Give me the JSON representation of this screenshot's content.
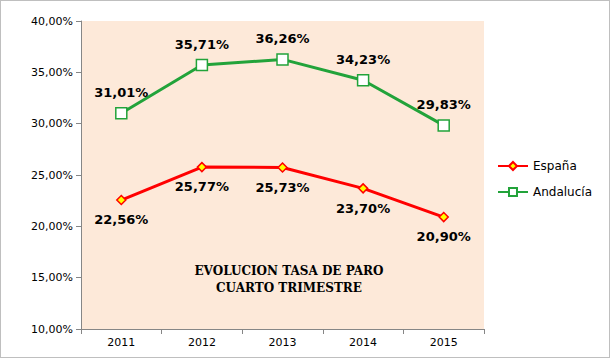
{
  "chart_data": {
    "type": "line",
    "title": "EVOLUCION TASA DE PARO\nCUARTO TRIMESTRE",
    "categories": [
      "2011",
      "2012",
      "2013",
      "2014",
      "2015"
    ],
    "series": [
      {
        "name": "España",
        "color": "#ff0000",
        "marker": "diamond",
        "values": [
          22.56,
          25.77,
          25.73,
          23.7,
          20.9
        ],
        "value_labels": [
          "22,56%",
          "25,77%",
          "25,73%",
          "23,70%",
          "20,90%"
        ]
      },
      {
        "name": "Andalucía",
        "color": "#22a33a",
        "marker": "square",
        "values": [
          31.01,
          35.71,
          36.26,
          34.23,
          29.83
        ],
        "value_labels": [
          "31,01%",
          "35,71%",
          "36,26%",
          "34,23%",
          "29,83%"
        ]
      }
    ],
    "ylim": [
      10,
      40
    ],
    "yticks": [
      {
        "value": 10,
        "label": "10,00%"
      },
      {
        "value": 15,
        "label": "15,00%"
      },
      {
        "value": 20,
        "label": "20,00%"
      },
      {
        "value": 25,
        "label": "25,00%"
      },
      {
        "value": 30,
        "label": "30,00%"
      },
      {
        "value": 35,
        "label": "35,00%"
      },
      {
        "value": 40,
        "label": "40,00%"
      }
    ],
    "grid": false,
    "legend": "right",
    "data_labels": true
  }
}
